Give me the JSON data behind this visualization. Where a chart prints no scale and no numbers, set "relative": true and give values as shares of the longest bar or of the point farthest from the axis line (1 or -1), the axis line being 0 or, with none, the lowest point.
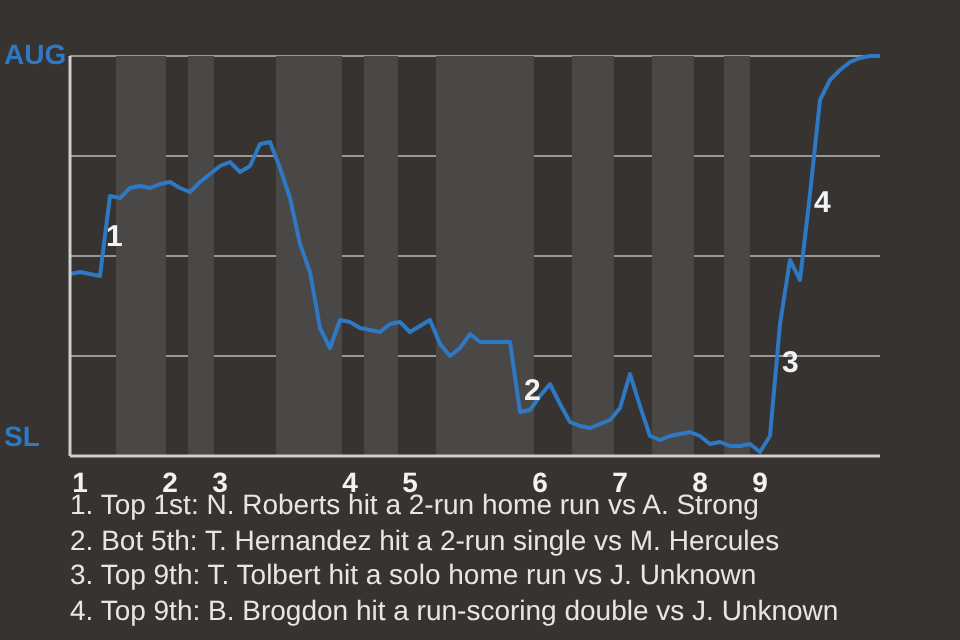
{
  "chart_data": {
    "type": "line",
    "relative": true,
    "categories": [
      null,
      "1",
      null,
      null,
      null,
      null,
      null,
      null,
      null,
      null,
      "2",
      null,
      null,
      null,
      null,
      "3",
      null,
      null,
      null,
      null,
      null,
      null,
      null,
      null,
      null,
      null,
      null,
      null,
      "4",
      null,
      null,
      null,
      null,
      null,
      "5",
      null,
      null,
      null,
      null,
      null,
      null,
      null,
      null,
      null,
      null,
      null,
      null,
      "6",
      null,
      null,
      null,
      null,
      null,
      null,
      null,
      "7",
      null,
      null,
      null,
      null,
      null,
      null,
      null,
      "8",
      null,
      null,
      null,
      null,
      null,
      "9",
      null,
      null,
      null,
      null,
      null,
      null,
      null,
      null,
      null,
      null,
      null,
      null
    ],
    "series": [
      {
        "color": "#2f78c4",
        "values": [
          0.455,
          0.46,
          0.455,
          0.45,
          0.65,
          0.645,
          0.67,
          0.675,
          0.67,
          0.68,
          0.685,
          0.67,
          0.66,
          0.685,
          0.705,
          0.725,
          0.735,
          0.71,
          0.725,
          0.78,
          0.785,
          0.72,
          0.645,
          0.53,
          0.46,
          0.32,
          0.27,
          0.34,
          0.335,
          0.32,
          0.315,
          0.31,
          0.33,
          0.335,
          0.31,
          0.325,
          0.34,
          0.28,
          0.25,
          0.27,
          0.305,
          0.285,
          0.285,
          0.285,
          0.285,
          0.11,
          0.115,
          0.15,
          0.18,
          0.13,
          0.085,
          0.075,
          0.07,
          0.08,
          0.09,
          0.12,
          0.205,
          0.125,
          0.05,
          0.04,
          0.05,
          0.055,
          0.06,
          0.05,
          0.03,
          0.035,
          0.025,
          0.025,
          0.03,
          0.01,
          0.05,
          0.33,
          0.49,
          0.44,
          0.655,
          0.89,
          0.94,
          0.965,
          0.985,
          0.995,
          1,
          1
        ]
      }
    ],
    "grid": "y",
    "legend": false,
    "marker": "none",
    "line_style": "solid",
    "annotations": [
      "AUG",
      "SL",
      "1",
      "2",
      "3",
      "4",
      "1. Top 1st: N. Roberts hit a 2-run home run vs A. Strong",
      "2. Bot 5th: T. Hernandez hit a 2-run single vs M. Hercules",
      "3. Top 9th: T. Tolbert hit a solo home run vs J. Unknown",
      "4. Top 9th: B. Brogdon hit a run-scoring double vs J. Unknown"
    ]
  }
}
